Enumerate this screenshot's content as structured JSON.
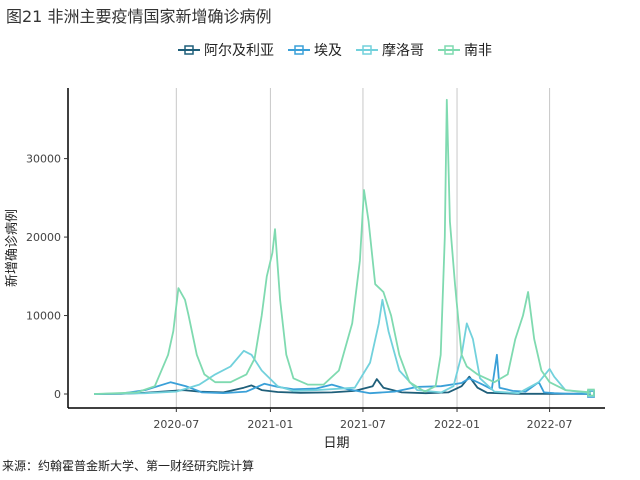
{
  "figure_title": "图21 非洲主要疫情国家新增确诊病例",
  "source_note": "来源：约翰霍普金斯大学、第一财经研究院计算",
  "chart_data": {
    "type": "line",
    "xlabel": "日期",
    "ylabel": "新增确诊病例",
    "grid": "vertical-major",
    "legend_position": "top",
    "x_range": [
      "2020-01-22",
      "2022-09-20"
    ],
    "ylim": [
      0,
      39000
    ],
    "x_ticks": [
      {
        "date": "2020-07-01",
        "label": "2020-07"
      },
      {
        "date": "2021-01-01",
        "label": "2021-01"
      },
      {
        "date": "2021-07-01",
        "label": "2021-07"
      },
      {
        "date": "2022-01-01",
        "label": "2022-01"
      },
      {
        "date": "2022-07-01",
        "label": "2022-07"
      }
    ],
    "y_ticks": [
      0,
      10000,
      20000,
      30000
    ],
    "series": [
      {
        "name": "阿尔及利亚",
        "color": "#1f5f7a",
        "points": [
          [
            "2020-01-22",
            0
          ],
          [
            "2020-03-15",
            20
          ],
          [
            "2020-05-01",
            150
          ],
          [
            "2020-07-15",
            500
          ],
          [
            "2020-08-15",
            300
          ],
          [
            "2020-10-01",
            200
          ],
          [
            "2020-11-10",
            800
          ],
          [
            "2020-11-25",
            1100
          ],
          [
            "2020-12-15",
            500
          ],
          [
            "2021-01-15",
            250
          ],
          [
            "2021-03-01",
            150
          ],
          [
            "2021-05-01",
            200
          ],
          [
            "2021-06-15",
            400
          ],
          [
            "2021-07-20",
            1000
          ],
          [
            "2021-07-28",
            1900
          ],
          [
            "2021-08-10",
            800
          ],
          [
            "2021-09-15",
            200
          ],
          [
            "2021-11-01",
            100
          ],
          [
            "2021-12-15",
            200
          ],
          [
            "2022-01-10",
            1000
          ],
          [
            "2022-01-25",
            2200
          ],
          [
            "2022-02-10",
            800
          ],
          [
            "2022-03-01",
            150
          ],
          [
            "2022-05-01",
            20
          ],
          [
            "2022-09-20",
            20
          ]
        ]
      },
      {
        "name": "埃及",
        "color": "#3aa0d8",
        "points": [
          [
            "2020-01-22",
            0
          ],
          [
            "2020-03-15",
            50
          ],
          [
            "2020-05-01",
            500
          ],
          [
            "2020-06-20",
            1500
          ],
          [
            "2020-07-20",
            1000
          ],
          [
            "2020-08-20",
            200
          ],
          [
            "2020-10-01",
            120
          ],
          [
            "2020-11-15",
            300
          ],
          [
            "2020-12-20",
            1300
          ],
          [
            "2021-01-15",
            900
          ],
          [
            "2021-02-15",
            600
          ],
          [
            "2021-04-01",
            700
          ],
          [
            "2021-05-01",
            1200
          ],
          [
            "2021-06-01",
            600
          ],
          [
            "2021-07-15",
            100
          ],
          [
            "2021-09-01",
            300
          ],
          [
            "2021-10-15",
            900
          ],
          [
            "2021-12-01",
            1000
          ],
          [
            "2022-01-10",
            1400
          ],
          [
            "2022-01-25",
            2000
          ],
          [
            "2022-02-20",
            1200
          ],
          [
            "2022-03-10",
            600
          ],
          [
            "2022-03-20",
            5000
          ],
          [
            "2022-03-25",
            800
          ],
          [
            "2022-04-20",
            400
          ],
          [
            "2022-05-15",
            300
          ],
          [
            "2022-06-10",
            1500
          ],
          [
            "2022-06-20",
            200
          ],
          [
            "2022-07-10",
            100
          ],
          [
            "2022-08-01",
            50
          ],
          [
            "2022-09-20",
            0
          ]
        ]
      },
      {
        "name": "摩洛哥",
        "color": "#72d1dc",
        "points": [
          [
            "2020-01-22",
            0
          ],
          [
            "2020-05-01",
            100
          ],
          [
            "2020-07-01",
            300
          ],
          [
            "2020-08-15",
            1200
          ],
          [
            "2020-09-15",
            2500
          ],
          [
            "2020-10-15",
            3500
          ],
          [
            "2020-11-10",
            5500
          ],
          [
            "2020-11-25",
            5000
          ],
          [
            "2020-12-15",
            3000
          ],
          [
            "2021-01-15",
            1000
          ],
          [
            "2021-02-15",
            400
          ],
          [
            "2021-04-01",
            500
          ],
          [
            "2021-06-15",
            800
          ],
          [
            "2021-07-15",
            4000
          ],
          [
            "2021-08-01",
            9000
          ],
          [
            "2021-08-08",
            12000
          ],
          [
            "2021-08-20",
            8000
          ],
          [
            "2021-09-10",
            3000
          ],
          [
            "2021-10-15",
            500
          ],
          [
            "2021-12-01",
            200
          ],
          [
            "2021-12-25",
            1000
          ],
          [
            "2022-01-10",
            5000
          ],
          [
            "2022-01-20",
            9000
          ],
          [
            "2022-02-01",
            7000
          ],
          [
            "2022-02-15",
            2000
          ],
          [
            "2022-03-15",
            300
          ],
          [
            "2022-05-01",
            100
          ],
          [
            "2022-06-10",
            1500
          ],
          [
            "2022-07-01",
            3200
          ],
          [
            "2022-07-10",
            2200
          ],
          [
            "2022-08-01",
            500
          ],
          [
            "2022-09-20",
            100
          ]
        ]
      },
      {
        "name": "南非",
        "color": "#7fdab0",
        "points": [
          [
            "2020-01-22",
            0
          ],
          [
            "2020-04-15",
            200
          ],
          [
            "2020-05-20",
            1000
          ],
          [
            "2020-06-15",
            5000
          ],
          [
            "2020-06-25",
            8000
          ],
          [
            "2020-07-05",
            13500
          ],
          [
            "2020-07-18",
            12000
          ],
          [
            "2020-07-25",
            10000
          ],
          [
            "2020-08-10",
            5000
          ],
          [
            "2020-08-25",
            2500
          ],
          [
            "2020-09-15",
            1500
          ],
          [
            "2020-10-15",
            1500
          ],
          [
            "2020-11-15",
            2500
          ],
          [
            "2020-12-01",
            4500
          ],
          [
            "2020-12-15",
            10000
          ],
          [
            "2020-12-25",
            15000
          ],
          [
            "2021-01-05",
            18000
          ],
          [
            "2021-01-10",
            21000
          ],
          [
            "2021-01-20",
            12000
          ],
          [
            "2021-02-01",
            5000
          ],
          [
            "2021-02-15",
            2000
          ],
          [
            "2021-03-15",
            1200
          ],
          [
            "2021-04-15",
            1200
          ],
          [
            "2021-05-15",
            3000
          ],
          [
            "2021-06-10",
            9000
          ],
          [
            "2021-06-25",
            17000
          ],
          [
            "2021-07-03",
            26000
          ],
          [
            "2021-07-12",
            22000
          ],
          [
            "2021-07-25",
            14000
          ],
          [
            "2021-08-10",
            13000
          ],
          [
            "2021-08-25",
            10000
          ],
          [
            "2021-09-10",
            5000
          ],
          [
            "2021-09-30",
            1500
          ],
          [
            "2021-10-30",
            300
          ],
          [
            "2021-11-20",
            1000
          ],
          [
            "2021-11-30",
            5000
          ],
          [
            "2021-12-08",
            20000
          ],
          [
            "2021-12-12",
            37500
          ],
          [
            "2021-12-18",
            22000
          ],
          [
            "2021-12-28",
            14000
          ],
          [
            "2022-01-10",
            5000
          ],
          [
            "2022-01-20",
            3500
          ],
          [
            "2022-02-10",
            2500
          ],
          [
            "2022-03-15",
            1500
          ],
          [
            "2022-04-10",
            2500
          ],
          [
            "2022-04-25",
            7000
          ],
          [
            "2022-05-10",
            10000
          ],
          [
            "2022-05-20",
            13000
          ],
          [
            "2022-06-01",
            7000
          ],
          [
            "2022-06-15",
            3000
          ],
          [
            "2022-07-01",
            1500
          ],
          [
            "2022-08-01",
            500
          ],
          [
            "2022-09-20",
            200
          ]
        ]
      }
    ]
  }
}
